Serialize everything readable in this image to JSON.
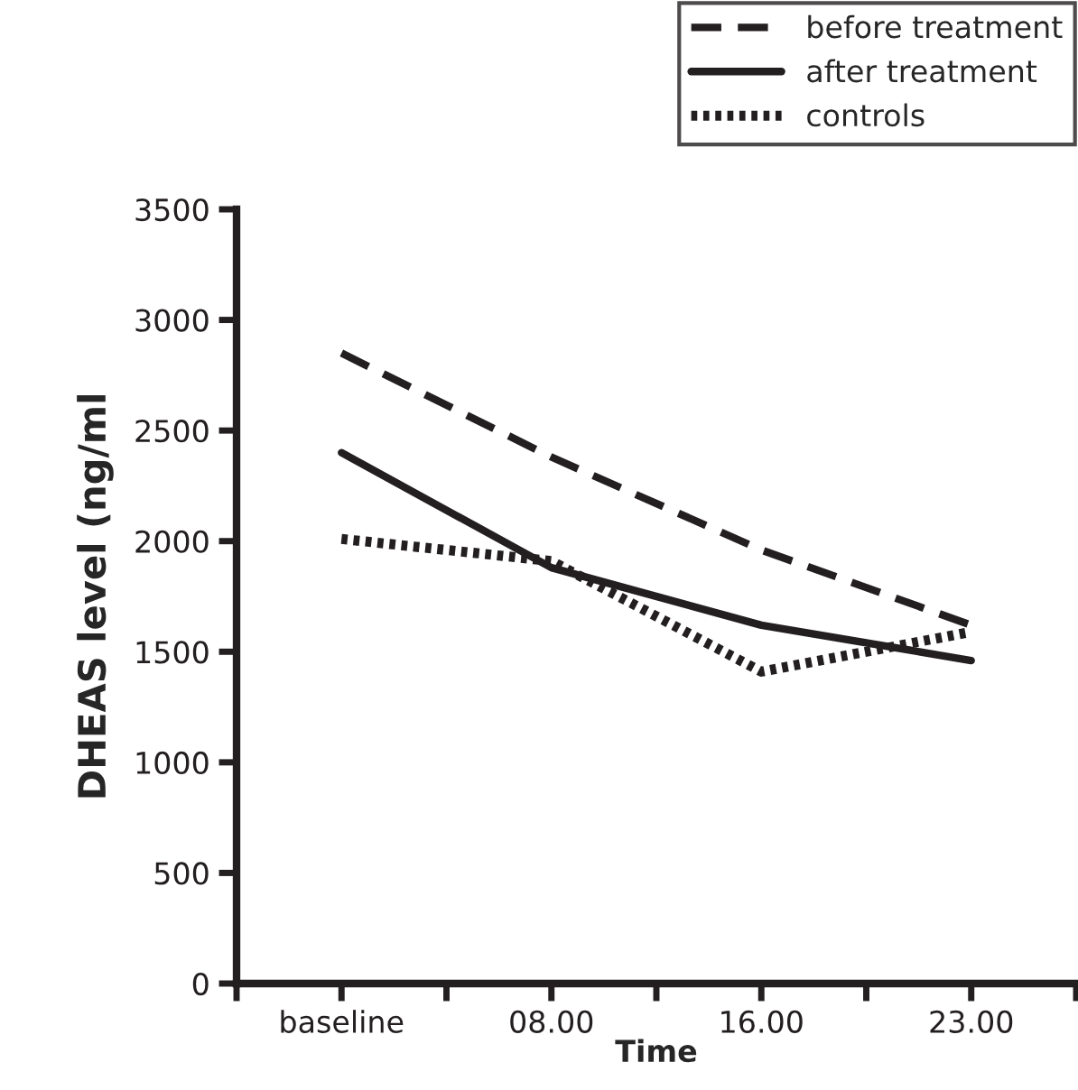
{
  "chart_data": {
    "type": "line",
    "xlabel": "Time",
    "ylabel": "DHEAS level (ng/ml",
    "categories": [
      "baseline",
      "08.00",
      "16.00",
      "23.00"
    ],
    "ylim": [
      0,
      3500
    ],
    "yticks": [
      0,
      500,
      1000,
      1500,
      2000,
      2500,
      3000,
      3500
    ],
    "legend": "top right",
    "grid": false,
    "marker": "none",
    "series": [
      {
        "name": "before treatment",
        "color": "#231f20",
        "line_style": "dashed",
        "values": [
          2850,
          2380,
          1960,
          1620
        ]
      },
      {
        "name": "after treatment",
        "color": "#231f20",
        "line_style": "solid",
        "values": [
          2400,
          1880,
          1620,
          1460
        ]
      },
      {
        "name": "controls",
        "color": "#231f20",
        "line_style": "dotted",
        "values": [
          2010,
          1910,
          1410,
          1590
        ]
      }
    ]
  }
}
